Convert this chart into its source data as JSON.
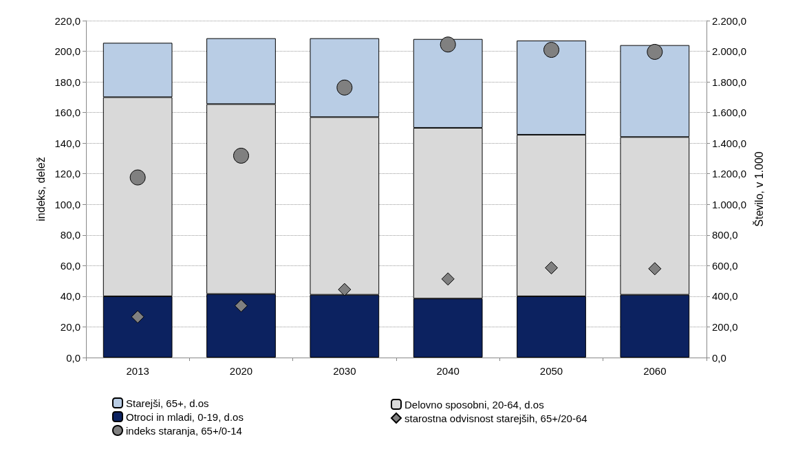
{
  "chart_data": {
    "type": "bar",
    "stacked": true,
    "categories": [
      "2013",
      "2020",
      "2030",
      "2040",
      "2050",
      "2060"
    ],
    "ylabel": "indeks, delež",
    "y2label": "Število, v 1.000",
    "ylim": [
      0,
      220
    ],
    "yticks": [
      {
        "value": 0,
        "label": "0,0"
      },
      {
        "value": 20,
        "label": "20,0"
      },
      {
        "value": 40,
        "label": "40,0"
      },
      {
        "value": 60,
        "label": "60,0"
      },
      {
        "value": 80,
        "label": "80,0"
      },
      {
        "value": 100,
        "label": "100,0"
      },
      {
        "value": 120,
        "label": "120,0"
      },
      {
        "value": 140,
        "label": "140,0"
      },
      {
        "value": 160,
        "label": "160,0"
      },
      {
        "value": 180,
        "label": "180,0"
      },
      {
        "value": 200,
        "label": "200,0"
      },
      {
        "value": 220,
        "label": "220,0"
      }
    ],
    "y2lim": [
      0,
      2200
    ],
    "y2ticks": [
      {
        "value": 0,
        "label": "0,0"
      },
      {
        "value": 200,
        "label": "200,0"
      },
      {
        "value": 400,
        "label": "400,0"
      },
      {
        "value": 600,
        "label": "600,0"
      },
      {
        "value": 800,
        "label": "800,0"
      },
      {
        "value": 1000,
        "label": "1.000,0"
      },
      {
        "value": 1200,
        "label": "1.200,0"
      },
      {
        "value": 1400,
        "label": "1.400,0"
      },
      {
        "value": 1600,
        "label": "1.600,0"
      },
      {
        "value": 1800,
        "label": "1.800,0"
      },
      {
        "value": 2000,
        "label": "2.000,0"
      },
      {
        "value": 2200,
        "label": "2.200,0"
      }
    ],
    "grid": "y",
    "legend": "bottom",
    "series": [
      {
        "name": "Otroci in mladi, 0-19, d.os",
        "axis": "y2",
        "color": "#0c2260",
        "values": [
          400,
          415,
          410,
          385,
          400,
          410
        ]
      },
      {
        "name": "Delovno sposobni, 20-64, d.os",
        "axis": "y2",
        "color": "#d9d9d9",
        "values": [
          1300,
          1240,
          1160,
          1115,
          1055,
          1030
        ]
      },
      {
        "name": "Starejši, 65+, d.os",
        "axis": "y2",
        "color": "#b9cde5",
        "values": [
          355,
          430,
          515,
          580,
          615,
          600
        ]
      },
      {
        "name": "starostna odvisnost starejših, 65+/20-64",
        "type": "scatter",
        "marker": "diamond",
        "color": "#808080",
        "values": [
          26.6,
          33.8,
          44.4,
          51.3,
          58.6,
          58.0
        ]
      },
      {
        "name": "indeks staranja, 65+/0-14",
        "type": "scatter",
        "marker": "circle",
        "color": "#808080",
        "values": [
          117.6,
          131.8,
          176.3,
          204.4,
          200.9,
          199.6
        ]
      }
    ]
  }
}
